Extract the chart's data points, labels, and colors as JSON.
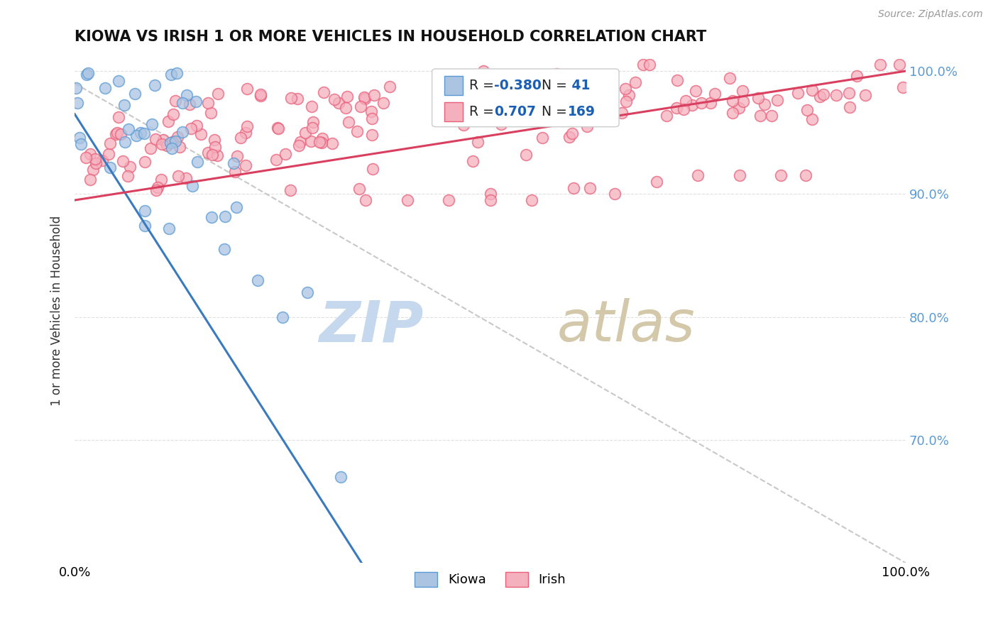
{
  "title": "KIOWA VS IRISH 1 OR MORE VEHICLES IN HOUSEHOLD CORRELATION CHART",
  "source": "Source: ZipAtlas.com",
  "ylabel": "1 or more Vehicles in Household",
  "kiowa_R": -0.38,
  "kiowa_N": 41,
  "irish_R": 0.707,
  "irish_N": 169,
  "kiowa_color": "#aac4e2",
  "irish_color": "#f5b0be",
  "kiowa_edge_color": "#5b9bd5",
  "irish_edge_color": "#e8607a",
  "kiowa_line_color": "#3a7abf",
  "irish_line_color": "#d94060",
  "watermark_zip_color": "#c5d8ee",
  "watermark_atlas_color": "#d0c8b8",
  "background_color": "#ffffff",
  "grid_color": "#e0e0e0",
  "right_tick_color": "#5b9bd5",
  "xlim": [
    0.0,
    1.0
  ],
  "ylim": [
    0.6,
    1.01
  ],
  "yticks": [
    0.7,
    0.8,
    0.9,
    1.0
  ],
  "ytick_labels": [
    "70.0%",
    "80.0%",
    "90.0%",
    "100.0%"
  ],
  "kiowa_line_x": [
    0.0,
    0.35
  ],
  "kiowa_line_y": [
    0.965,
    0.595
  ],
  "irish_line_x": [
    0.0,
    1.0
  ],
  "irish_line_y": [
    0.895,
    1.0
  ],
  "dash_line_x": [
    0.0,
    1.0
  ],
  "dash_line_y": [
    0.99,
    0.6
  ],
  "title_fontsize": 15,
  "tick_fontsize": 13,
  "source_fontsize": 10,
  "scatter_size": 130,
  "scatter_alpha": 0.75,
  "scatter_linewidth": 1.2
}
